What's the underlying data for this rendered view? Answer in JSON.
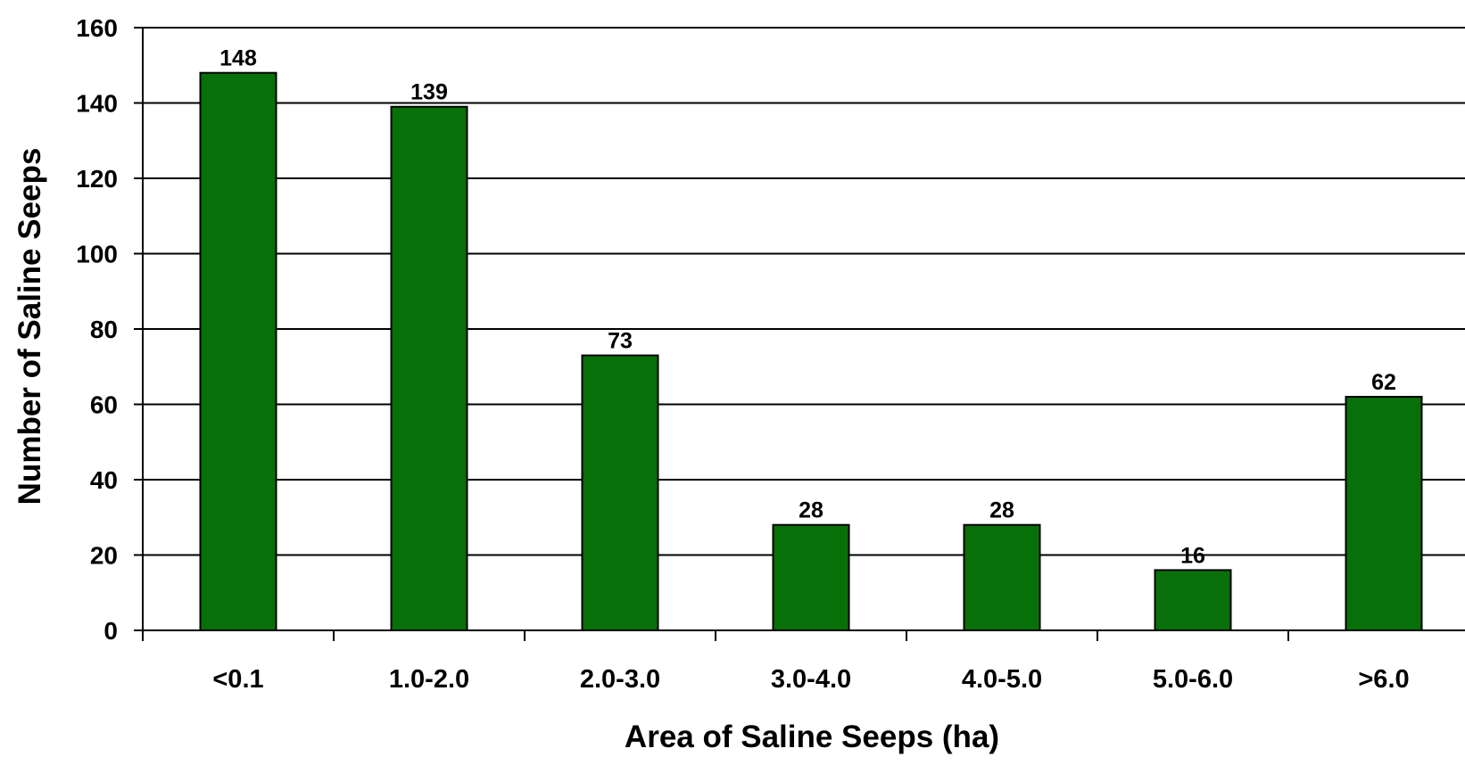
{
  "chart_data": {
    "type": "bar",
    "title": "",
    "xlabel": "Area of Saline Seeps (ha)",
    "ylabel": "Number of Saline Seeps",
    "categories": [
      "<0.1",
      "1.0-2.0",
      "2.0-3.0",
      "3.0-4.0",
      "4.0-5.0",
      "5.0-6.0",
      ">6.0"
    ],
    "values": [
      148,
      139,
      73,
      28,
      28,
      16,
      62
    ],
    "data_labels": [
      "148",
      "139",
      "73",
      "28",
      "28",
      "16",
      "62"
    ],
    "ylim": [
      0,
      160
    ],
    "yticks": [
      0,
      20,
      40,
      60,
      80,
      100,
      120,
      140,
      160
    ],
    "ytick_labels": [
      "0",
      "20",
      "40",
      "60",
      "80",
      "100",
      "120",
      "140",
      "160"
    ],
    "grid": "horizontal",
    "legend": "none",
    "colors": {
      "bar_fill": "#087008",
      "bar_stroke": "#000000",
      "grid": "#000000",
      "axis": "#000000",
      "background": "#ffffff"
    }
  }
}
